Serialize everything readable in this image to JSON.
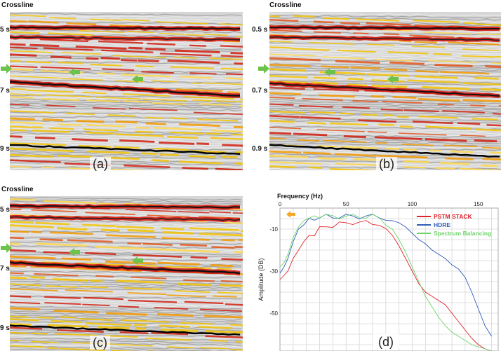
{
  "panels": [
    {
      "id": "a",
      "title": "Crossline",
      "label": "(a)",
      "times": [
        "5 s",
        "7 s",
        "9 s"
      ]
    },
    {
      "id": "b",
      "title": "Crossline",
      "label": "(b)",
      "times": [
        "0.5 s",
        "0.7 s",
        "0.9 s"
      ]
    },
    {
      "id": "c",
      "title": "Crossline",
      "label": "(c)",
      "times": [
        "5 s",
        "7 s",
        "9 s"
      ]
    }
  ],
  "spectrum": {
    "label": "(d)",
    "colors": {
      "PSTM STACK": "#e0222a",
      "HDRE": "#2e5cb8",
      "Spectrum Balancing": "#6fd36a"
    },
    "arrow_color": "#f5a623",
    "marker_arrow_color": "#6cc24a"
  },
  "chart_data": {
    "type": "line",
    "title": "",
    "xlabel": "Frequency (Hz)",
    "ylabel": "Amplitude (DB)",
    "xlim": [
      0,
      165
    ],
    "ylim": [
      -68,
      0
    ],
    "xticks": [
      50,
      100,
      150
    ],
    "yticks": [
      -10,
      -30,
      -50
    ],
    "legend_position": "top-right",
    "grid": true,
    "series": [
      {
        "name": "PSTM STACK",
        "x": [
          0,
          3,
          6,
          10,
          14,
          18,
          22,
          26,
          30,
          35,
          40,
          45,
          50,
          55,
          60,
          65,
          70,
          75,
          80,
          85,
          90,
          95,
          100,
          105,
          110,
          115,
          120,
          125,
          130,
          135,
          140,
          145,
          150,
          155,
          160
        ],
        "y": [
          -34,
          -32,
          -30,
          -24,
          -20,
          -16,
          -14,
          -12,
          -10,
          -9,
          -8,
          -7,
          -8,
          -7,
          -6,
          -7,
          -8,
          -7,
          -10,
          -13,
          -18,
          -24,
          -30,
          -36,
          -40,
          -42,
          -44,
          -46,
          -50,
          -54,
          -58,
          -62,
          -65,
          -67,
          -68
        ]
      },
      {
        "name": "HDRE",
        "x": [
          0,
          3,
          6,
          10,
          14,
          18,
          22,
          26,
          30,
          35,
          40,
          45,
          50,
          55,
          60,
          65,
          70,
          75,
          80,
          85,
          90,
          95,
          100,
          105,
          110,
          115,
          120,
          125,
          130,
          135,
          140,
          145,
          150,
          155,
          160
        ],
        "y": [
          -31,
          -28,
          -24,
          -16,
          -10,
          -8,
          -6,
          -5,
          -5,
          -4,
          -4,
          -4,
          -4,
          -4,
          -4,
          -4,
          -4,
          -4,
          -5,
          -6,
          -7,
          -9,
          -12,
          -15,
          -17,
          -20,
          -22,
          -24,
          -27,
          -29,
          -33,
          -40,
          -48,
          -56,
          -61
        ]
      },
      {
        "name": "Spectrum Balancing",
        "x": [
          0,
          3,
          6,
          10,
          14,
          18,
          22,
          26,
          30,
          35,
          40,
          45,
          50,
          55,
          60,
          65,
          70,
          75,
          80,
          85,
          90,
          95,
          100,
          105,
          110,
          115,
          120,
          125,
          130,
          135,
          140,
          145,
          150,
          155,
          160
        ],
        "y": [
          -28,
          -26,
          -22,
          -14,
          -9,
          -6,
          -5,
          -4,
          -4,
          -4,
          -4,
          -4,
          -4,
          -4,
          -4,
          -4,
          -4,
          -5,
          -7,
          -10,
          -15,
          -21,
          -28,
          -35,
          -42,
          -47,
          -52,
          -56,
          -59,
          -61,
          -63,
          -65,
          -66,
          -67,
          -68
        ]
      }
    ]
  }
}
